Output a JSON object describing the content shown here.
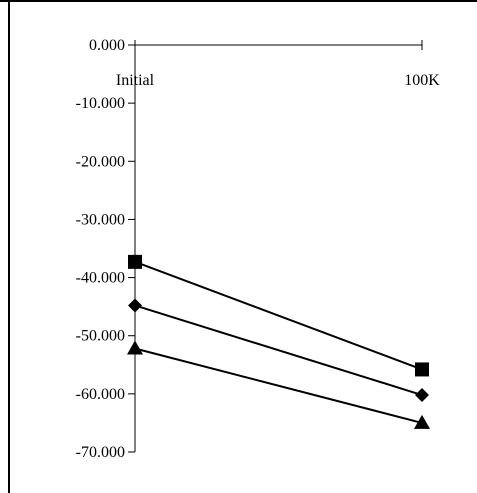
{
  "chart_data": {
    "type": "line",
    "categories": [
      "Initial",
      "100K"
    ],
    "series": [
      {
        "marker": "square",
        "values": [
          -37.3,
          -55.8
        ]
      },
      {
        "marker": "diamond",
        "values": [
          -44.8,
          -60.2
        ]
      },
      {
        "marker": "triangle",
        "values": [
          -52.2,
          -65.0
        ]
      }
    ],
    "y_ticks": [
      "0.000",
      "-10.000",
      "-20.000",
      "-30.000",
      "-40.000",
      "-50.000",
      "-60.000",
      "-70.000"
    ],
    "ylim": [
      -70,
      0
    ],
    "x_axis_position": "at y = 0 (top)",
    "grid": false,
    "legend": "none",
    "colors": {
      "line": "#000000",
      "marker": "#000000",
      "background": "#ffffff"
    }
  }
}
